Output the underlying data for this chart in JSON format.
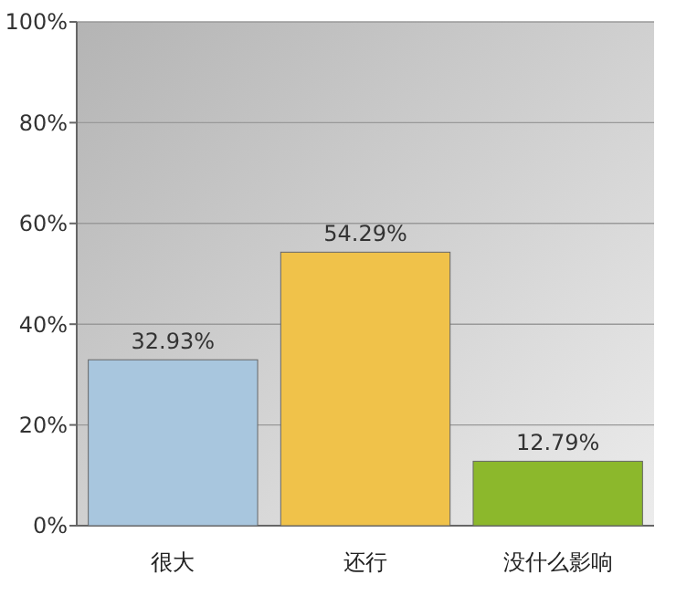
{
  "chart_data": {
    "type": "bar",
    "categories": [
      "很大",
      "还行",
      "没什么影响"
    ],
    "values": [
      32.93,
      54.29,
      12.79
    ],
    "value_labels": [
      "32.93%",
      "54.29%",
      "12.79%"
    ],
    "colors": [
      "#a8c6de",
      "#f0c24a",
      "#8cb82c"
    ],
    "ylim": [
      0,
      100
    ],
    "yticks": [
      {
        "value": 0,
        "label": "0%"
      },
      {
        "value": 20,
        "label": "20%"
      },
      {
        "value": 40,
        "label": "40%"
      },
      {
        "value": 60,
        "label": "60%"
      },
      {
        "value": 80,
        "label": "80%"
      },
      {
        "value": 100,
        "label": "100%"
      }
    ],
    "grid": "y"
  }
}
